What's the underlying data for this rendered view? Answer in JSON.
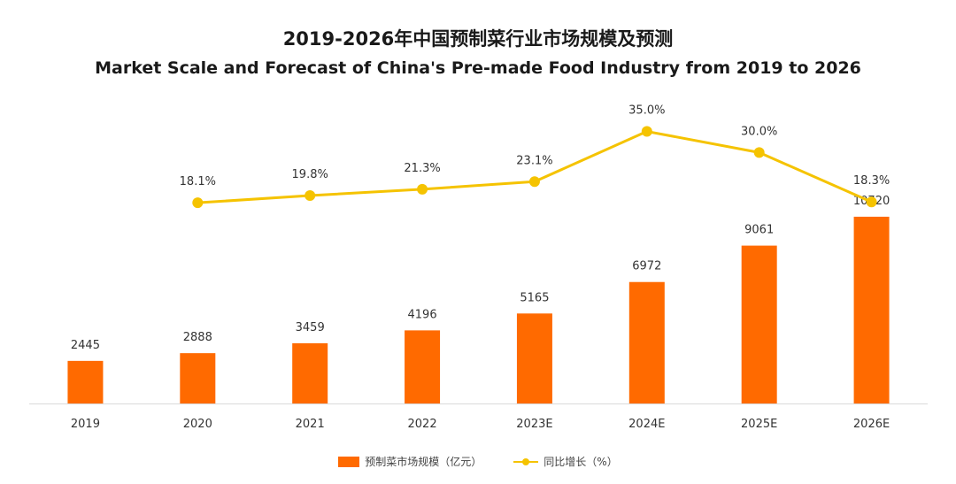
{
  "chart_data": {
    "type": "bar",
    "title": "2019-2026年中国预制菜行业市场规模及预测",
    "subtitle": "Market Scale and Forecast of China's Pre-made Food Industry from 2019 to 2026",
    "categories": [
      "2019",
      "2020",
      "2021",
      "2022",
      "2023E",
      "2024E",
      "2025E",
      "2026E"
    ],
    "series": [
      {
        "name": "预制菜市场规模（亿元）",
        "type": "bar",
        "color": "#ff6a00",
        "values": [
          2445,
          2888,
          3459,
          4196,
          5165,
          6972,
          9061,
          10720
        ],
        "labels": [
          "2445",
          "2888",
          "3459",
          "4196",
          "5165",
          "6972",
          "9061",
          "10720"
        ]
      },
      {
        "name": "同比增长（%）",
        "type": "line",
        "color": "#f5c300",
        "values": [
          null,
          18.1,
          19.8,
          21.3,
          23.1,
          35.0,
          30.0,
          18.3
        ],
        "labels": [
          "",
          "18.1%",
          "19.8%",
          "21.3%",
          "23.1%",
          "35.0%",
          "30.0%",
          "18.3%"
        ]
      }
    ],
    "bar_axis_range": [
      0,
      12000
    ],
    "line_axis_range": [
      -40,
      45
    ],
    "grid": false,
    "legend_position": "bottom"
  }
}
